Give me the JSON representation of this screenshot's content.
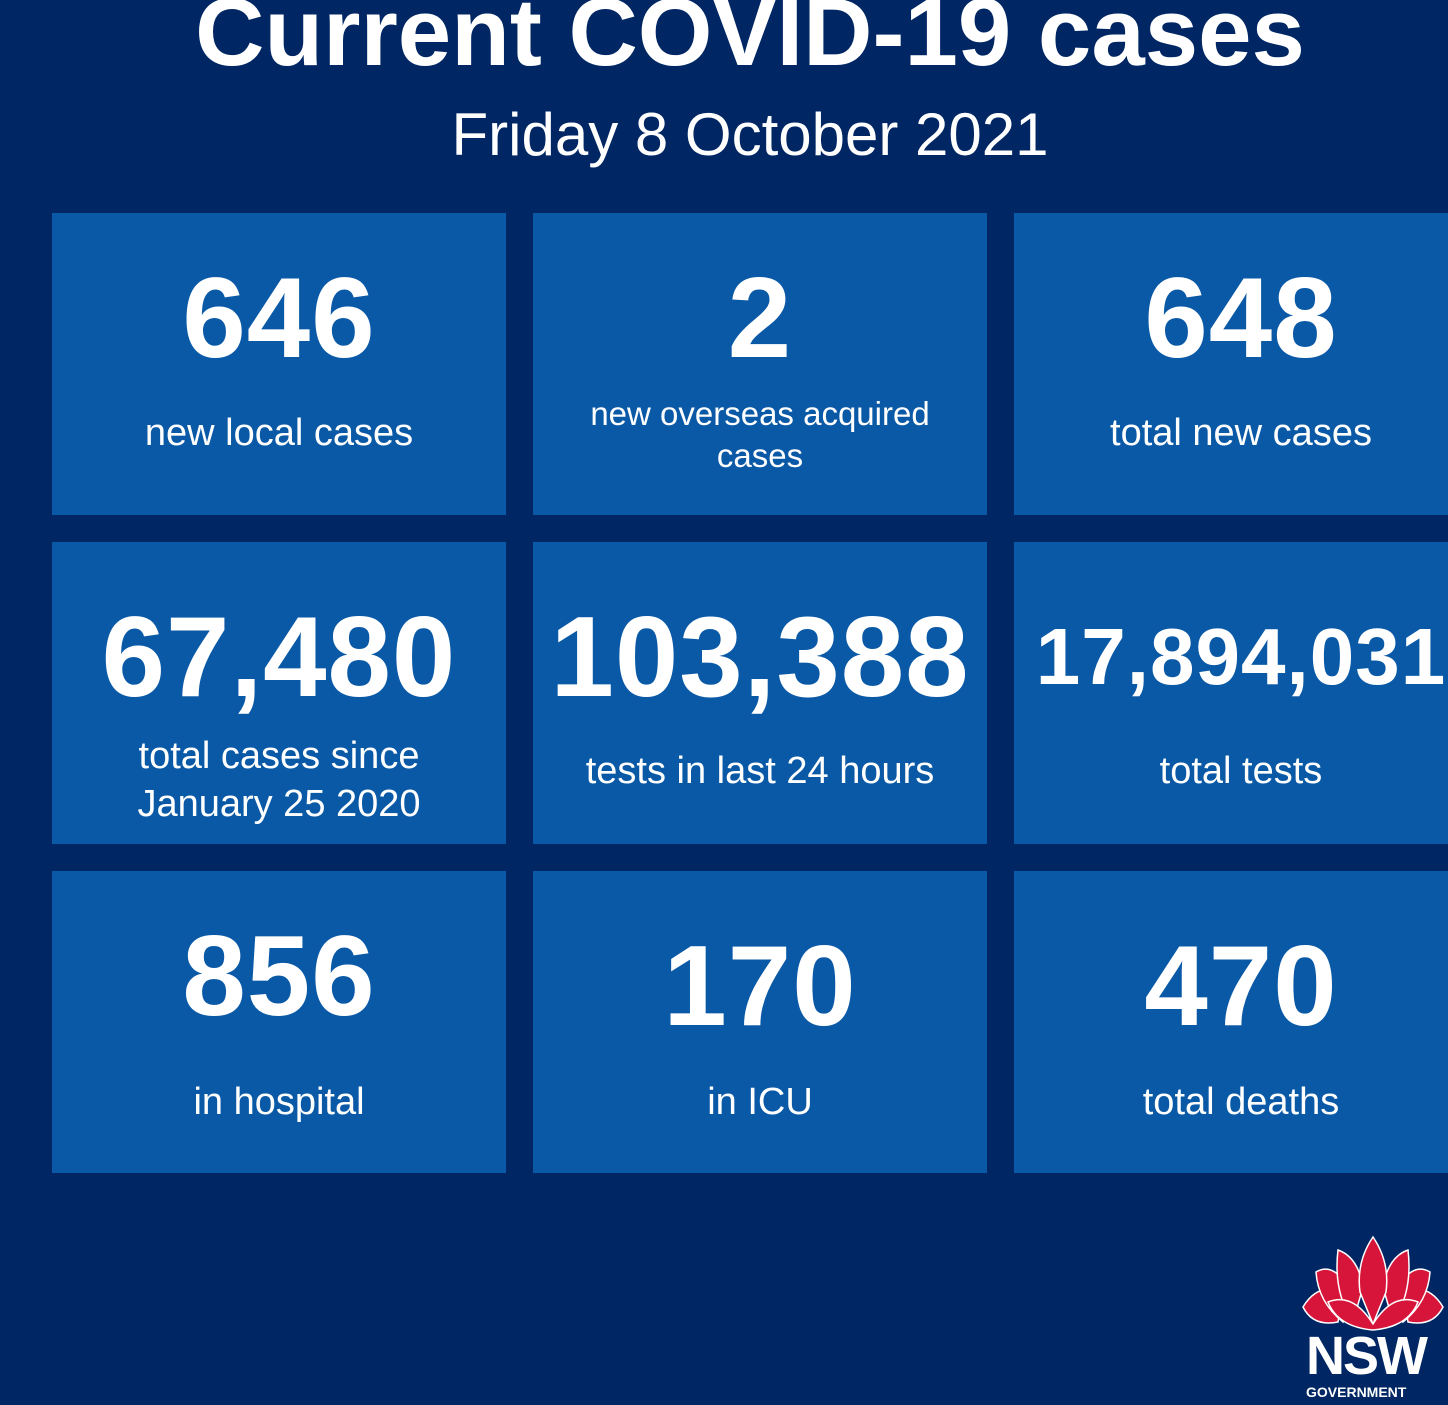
{
  "header": {
    "title": "Current COVID-19 cases",
    "date": "Friday 8 October 2021"
  },
  "tiles": [
    {
      "value": "646",
      "label": "new local cases"
    },
    {
      "value": "2",
      "label": "new overseas acquired cases"
    },
    {
      "value": "648",
      "label": "total new cases"
    },
    {
      "value": "67,480",
      "label": "total cases since January 25 2020"
    },
    {
      "value": "103,388",
      "label": "tests in last 24 hours"
    },
    {
      "value": "17,894,031",
      "label": "total tests"
    },
    {
      "value": "856",
      "label": "in hospital"
    },
    {
      "value": "170",
      "label": "in ICU"
    },
    {
      "value": "470",
      "label": "total deaths"
    }
  ],
  "logo": {
    "text": "NSW",
    "subtext": "GOVERNMENT"
  },
  "colors": {
    "background": "#002664",
    "tile": "#0a59a6",
    "waratah": "#d7153a"
  }
}
